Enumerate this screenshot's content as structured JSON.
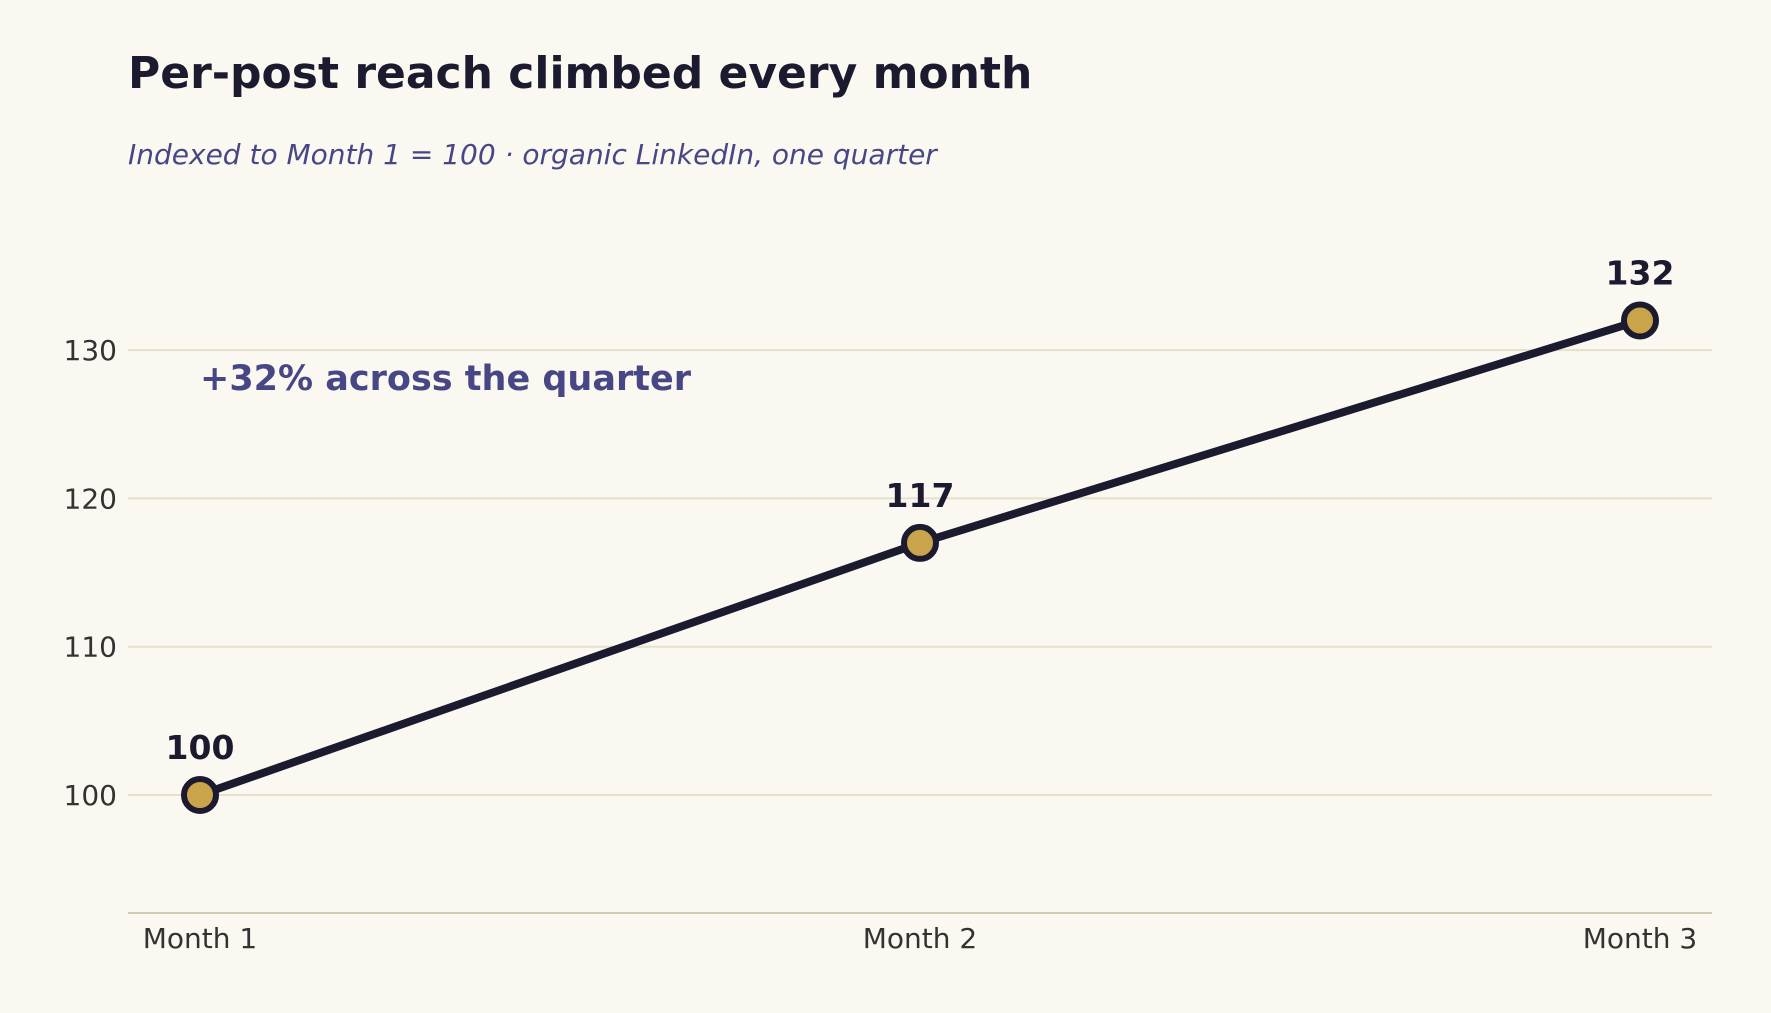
{
  "chart_data": {
    "type": "line",
    "title": "Per-post reach climbed every month",
    "subtitle": "Indexed to Month 1 = 100  ·  organic LinkedIn, one quarter",
    "categories": [
      "Month 1",
      "Month 2",
      "Month 3"
    ],
    "series": [
      {
        "values": [
          100,
          117,
          132
        ]
      }
    ],
    "data_labels": [
      "100",
      "117",
      "132"
    ],
    "annotation": "+32% across the quarter",
    "y_ticks": [
      100,
      110,
      120,
      130
    ],
    "ylim": [
      92,
      140
    ],
    "grid": true,
    "xlabel": "",
    "ylabel": "",
    "colors": {
      "background": "#faf8f1",
      "line": "#1b1a2e",
      "marker_fill": "#c9a44a",
      "gridline": "#e6e0cc",
      "axis": "#cfcbb6",
      "annotation": "#474785"
    }
  }
}
